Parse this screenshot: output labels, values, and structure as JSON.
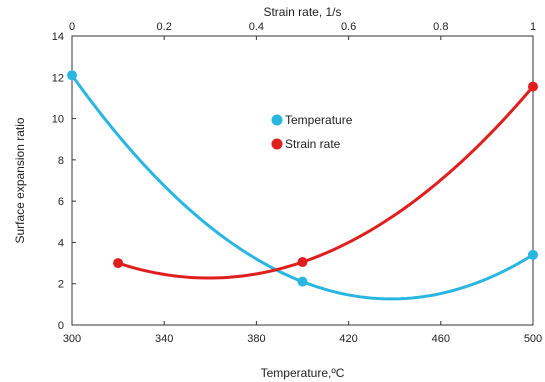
{
  "chart_data": {
    "type": "scatter",
    "title": "",
    "xlabel": "Temperature,ºC",
    "x2label": "Strain rate, 1/s",
    "ylabel": "Surface expansion ratio",
    "xlim": [
      300,
      500
    ],
    "x2lim": [
      0,
      1
    ],
    "ylim": [
      0,
      14
    ],
    "x_ticks": [
      "300",
      "340",
      "380",
      "420",
      "460",
      "500"
    ],
    "x2_ticks": [
      "0",
      "0.2",
      "0.4",
      "0.6",
      "0.8",
      "1"
    ],
    "y_ticks": [
      "0",
      "2",
      "4",
      "6",
      "8",
      "10",
      "12",
      "14"
    ],
    "grid": false,
    "legend_position": "center",
    "series": [
      {
        "name": "Temperature",
        "color": "#29b6e0",
        "axis": "bottom",
        "x": [
          300,
          400,
          500
        ],
        "y": [
          12.1,
          2.1,
          3.4
        ],
        "fit": "quadratic"
      },
      {
        "name": "Strain rate",
        "color": "#e01e1e",
        "axis": "top",
        "x": [
          0.1,
          0.5,
          1.0
        ],
        "y": [
          3.0,
          3.05,
          11.55
        ],
        "fit": "quadratic"
      }
    ]
  }
}
